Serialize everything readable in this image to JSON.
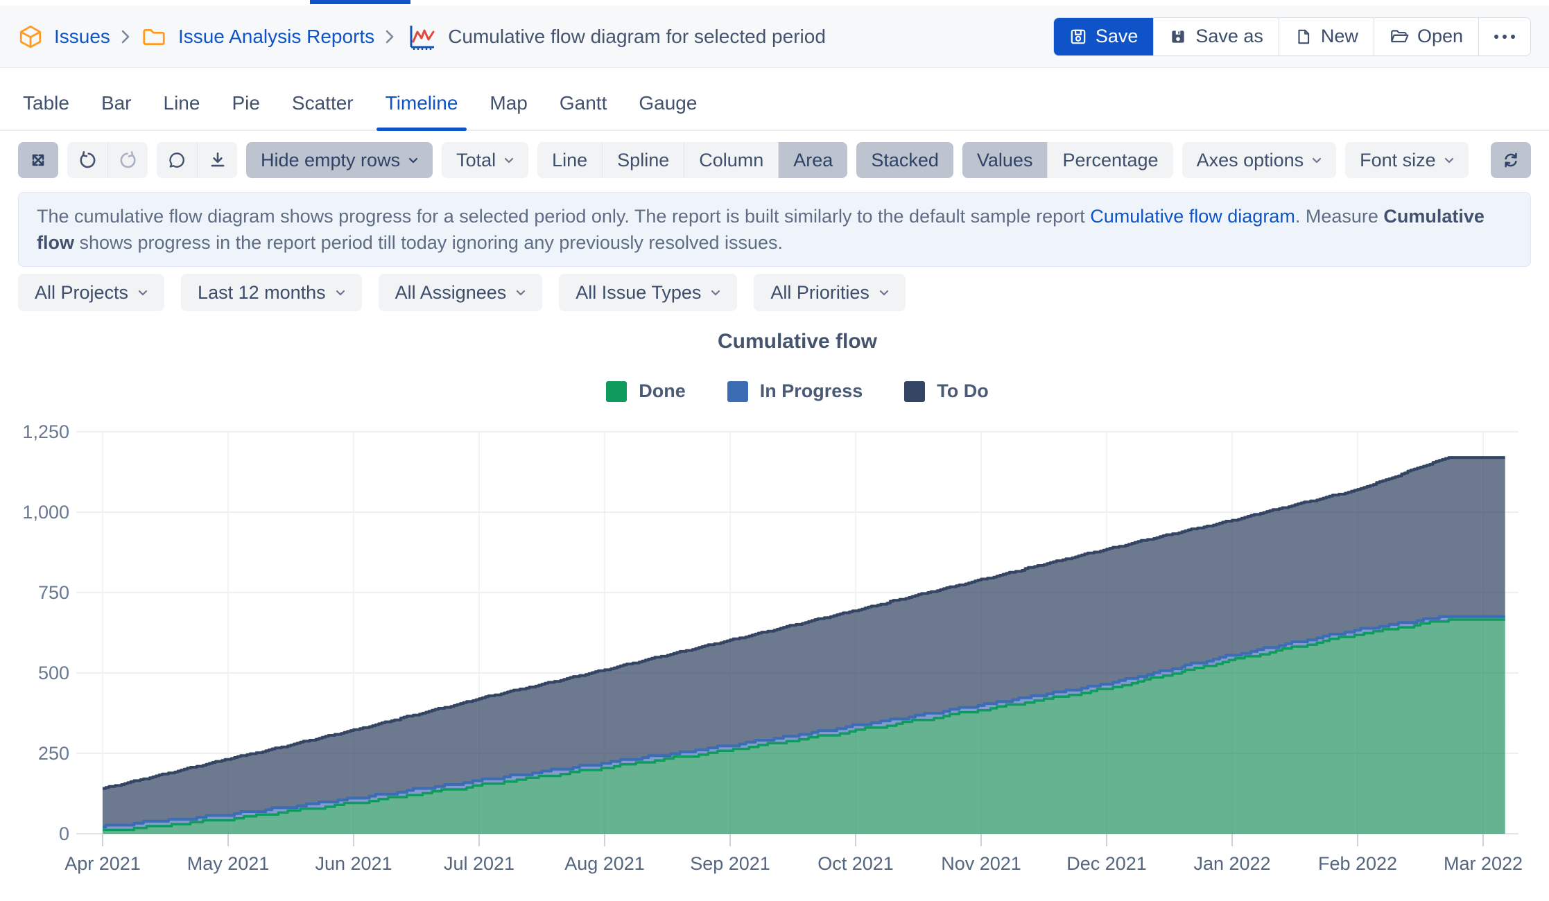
{
  "breadcrumb": {
    "items": [
      "Issues",
      "Issue Analysis Reports",
      "Cumulative flow diagram for selected period"
    ]
  },
  "actions": {
    "save": "Save",
    "save_as": "Save as",
    "new": "New",
    "open": "Open",
    "more": "..."
  },
  "tabs": {
    "items": [
      "Table",
      "Bar",
      "Line",
      "Pie",
      "Scatter",
      "Timeline",
      "Map",
      "Gantt",
      "Gauge"
    ],
    "active": "Timeline"
  },
  "toolbar": {
    "hide_empty_rows": "Hide empty rows",
    "total": "Total",
    "chart_types": [
      "Line",
      "Spline",
      "Column",
      "Area"
    ],
    "active_chart_type": "Area",
    "stacked": "Stacked",
    "values": "Values",
    "percentage": "Percentage",
    "axes_options": "Axes options",
    "font_size": "Font size"
  },
  "description": {
    "segments": [
      {
        "t": "The cumulative flow diagram shows progress for a selected period only. The report is built similarly to the default sample report ",
        "s": "n"
      },
      {
        "t": "Cumulative flow diagram",
        "s": "l"
      },
      {
        "t": ". Measure ",
        "s": "n"
      },
      {
        "t": "Cumulative flow",
        "s": "b"
      },
      {
        "t": " shows progress in the report period till today ignoring any previously resolved issues.",
        "s": "n"
      }
    ]
  },
  "filters": [
    "All Projects",
    "Last 12 months",
    "All Assignees",
    "All Issue Types",
    "All Priorities"
  ],
  "chart_data": {
    "type": "area",
    "stacked": true,
    "title": "Cumulative flow",
    "categories": [
      "Apr 2021",
      "May 2021",
      "Jun 2021",
      "Jul 2021",
      "Aug 2021",
      "Sep 2021",
      "Oct 2021",
      "Nov 2021",
      "Dec 2021",
      "Jan 2022",
      "Feb 2022",
      "Mar 2022"
    ],
    "series": [
      {
        "name": "Done",
        "color": "#0E9B5D",
        "fill": "rgba(6,132,78,0.62)",
        "values": [
          8,
          45,
          95,
          150,
          205,
          260,
          320,
          385,
          450,
          540,
          620,
          660
        ]
      },
      {
        "name": "In Progress",
        "color": "#3B6CB4",
        "fill": "rgba(90,122,190,0.75)",
        "values": [
          14,
          15,
          14,
          16,
          15,
          14,
          16,
          15,
          16,
          15,
          14,
          12
        ]
      },
      {
        "name": "To Do",
        "color": "#344563",
        "fill": "rgba(52,69,99,0.72)",
        "values": [
          118,
          172,
          213,
          254,
          290,
          328,
          359,
          390,
          419,
          420,
          436,
          498
        ]
      }
    ],
    "ylim": [
      0,
      1250
    ],
    "yticks": [
      0,
      250,
      500,
      750,
      1000,
      1250
    ],
    "ytick_labels": [
      "0",
      "250",
      "500",
      "750",
      "1,000",
      "1,250"
    ],
    "xlabel": "",
    "ylabel": "",
    "grid": true,
    "legend_position": "top",
    "render": {
      "x_end_month": 11.18,
      "plateau_from_month": 10.72,
      "end": {
        "done": 665,
        "in_progress": 12,
        "total": 1170
      }
    }
  }
}
